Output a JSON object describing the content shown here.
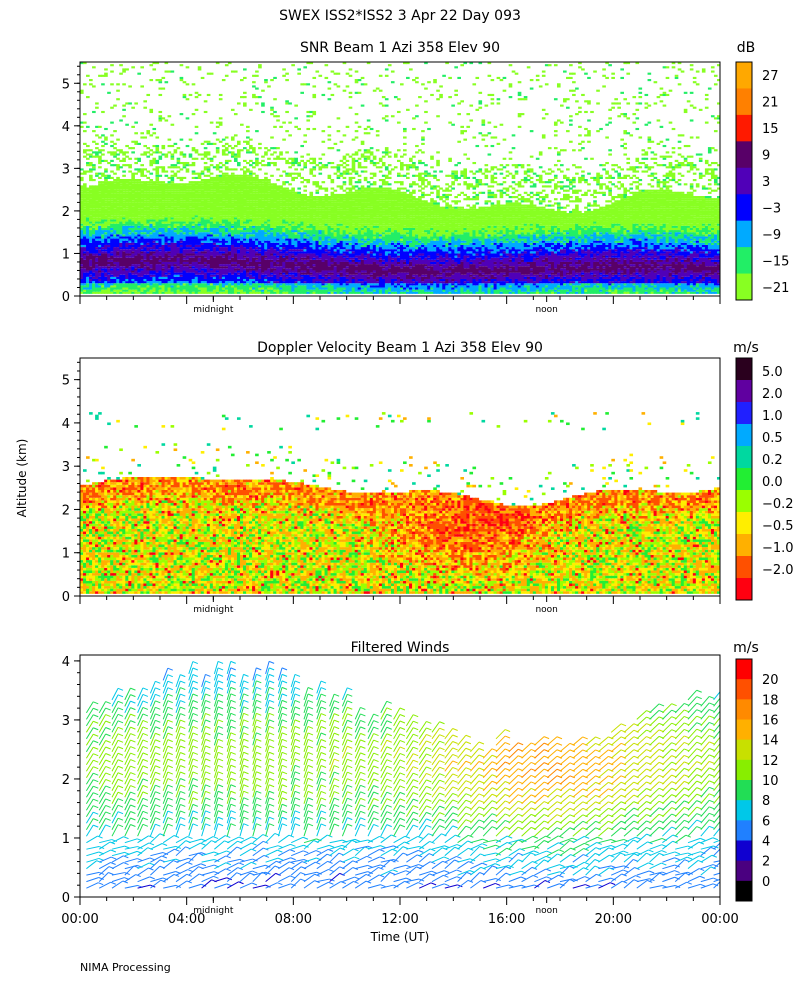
{
  "header": {
    "title": "SWEX ISS2*ISS2   3 Apr 22 Day 093"
  },
  "footer": {
    "credit": "NIMA Processing"
  },
  "chart_data": [
    {
      "type": "heatmap",
      "title": "SNR Beam 1 Azi 358 Elev 90",
      "ylim": [
        0,
        5.5
      ],
      "y_ticks": [
        "0",
        "1",
        "2",
        "3",
        "4",
        "5"
      ],
      "x_markers": [
        "midnight",
        "noon"
      ],
      "colorbar": {
        "unit": "dB",
        "labels": [
          "27",
          "21",
          "15",
          "9",
          "3",
          "−3",
          "−9",
          "−15",
          "−21"
        ],
        "colors": [
          "#ffa800",
          "#ff8000",
          "#ff1a00",
          "#580068",
          "#5000b8",
          "#0000ff",
          "#00aaff",
          "#22ee66",
          "#88ff22"
        ]
      },
      "layer_top_km": 2.45,
      "notes": "Dense echo below ~2.5 km, enhanced band near 0.6-1.2 km, sparse green speckle aloft to 5.5 km"
    },
    {
      "type": "heatmap",
      "title": "Doppler Velocity Beam 1 Azi 358 Elev 90",
      "ylim": [
        0,
        5.5
      ],
      "y_ticks": [
        "0",
        "1",
        "2",
        "3",
        "4",
        "5"
      ],
      "x_markers": [
        "midnight",
        "noon"
      ],
      "colorbar": {
        "unit": "m/s",
        "labels": [
          "5.0",
          "2.0",
          "1.0",
          "0.5",
          "0.2",
          "0.0",
          "−0.2",
          "−0.5",
          "−1.0",
          "−2.0"
        ],
        "colors": [
          "#2a001e",
          "#6000a0",
          "#2020ff",
          "#00aaff",
          "#00d8a0",
          "#22ee33",
          "#9aff00",
          "#ffee00",
          "#ffb000",
          "#ff5000",
          "#ff0010"
        ]
      },
      "layer_top_km": 2.6
    },
    {
      "type": "barbs",
      "title": "Filtered Winds",
      "ylim": [
        0,
        4.1
      ],
      "y_ticks": [
        "0",
        "1",
        "2",
        "3",
        "4"
      ],
      "xlabel": "Time (UT)",
      "ylabel": "Altitude (km)",
      "x_ticks": [
        "00:00",
        "04:00",
        "08:00",
        "12:00",
        "16:00",
        "20:00",
        "00:00"
      ],
      "x_markers": [
        "midnight",
        "noon"
      ],
      "xlim_hours": [
        0,
        24
      ],
      "colorbar": {
        "unit": "m/s",
        "labels": [
          "20",
          "18",
          "16",
          "14",
          "12",
          "10",
          "8",
          "6",
          "4",
          "2",
          "0"
        ],
        "colors": [
          "#ff0000",
          "#ff5000",
          "#ff8a00",
          "#ffb000",
          "#c8e000",
          "#88ee00",
          "#22dd55",
          "#00c8e8",
          "#2080ff",
          "#1000d0",
          "#4a0080",
          "#000000"
        ]
      },
      "typical_speed_ms": [
        {
          "height_km": 0.5,
          "speed": 3
        },
        {
          "height_km": 1.5,
          "speed": 7
        },
        {
          "height_km": 2.5,
          "speed": 9
        },
        {
          "height_km": 3.5,
          "speed": 7
        }
      ]
    }
  ]
}
